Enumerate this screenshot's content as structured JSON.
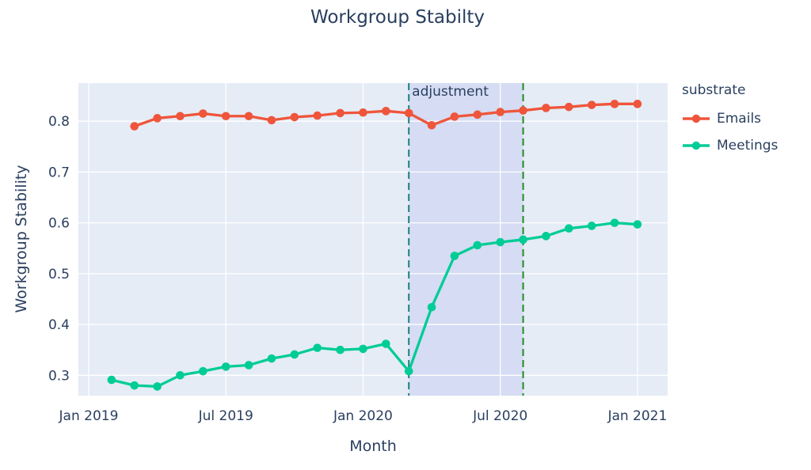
{
  "title": "Workgroup Stabilty",
  "axes": {
    "x_title": "Month",
    "y_title": "Workgroup Stability"
  },
  "annotation": "adjustment",
  "legend": {
    "title": "substrate",
    "items": [
      {
        "label": "Emails",
        "color": "#EF553B"
      },
      {
        "label": "Meetings",
        "color": "#00CC96"
      }
    ]
  },
  "colors": {
    "text": "#2a3f5f",
    "grid": "#ffffff",
    "plot_bg": "#E5ECF6",
    "region_fill": "#646EDC",
    "region_line_left": "#1d8080",
    "region_line_right": "#228B22"
  },
  "chart_data": {
    "type": "line",
    "title": "Workgroup Stabilty",
    "xlabel": "Month",
    "ylabel": "Workgroup Stability",
    "legend_title": "substrate",
    "legend_position": "right",
    "grid": true,
    "plot_bg": "#E5ECF6",
    "x_range_month_index": [
      -0.45,
      25.32
    ],
    "y_range": [
      0.26,
      0.875
    ],
    "x_ticks": {
      "months": [
        "2019-01",
        "2019-07",
        "2020-01",
        "2020-07",
        "2021-01"
      ],
      "labels": [
        "Jan 2019",
        "Jul 2019",
        "Jan 2020",
        "Jul 2020",
        "Jan 2021"
      ]
    },
    "y_ticks": [
      0.3,
      0.4,
      0.5,
      0.6,
      0.7,
      0.8
    ],
    "series": [
      {
        "name": "Emails",
        "color": "#EF553B",
        "x": [
          "2019-03",
          "2019-04",
          "2019-05",
          "2019-06",
          "2019-07",
          "2019-08",
          "2019-09",
          "2019-10",
          "2019-11",
          "2019-12",
          "2020-01",
          "2020-02",
          "2020-03",
          "2020-04",
          "2020-05",
          "2020-06",
          "2020-07",
          "2020-08",
          "2020-09",
          "2020-10",
          "2020-11",
          "2020-12",
          "2021-01"
        ],
        "values": [
          0.79,
          0.806,
          0.81,
          0.815,
          0.81,
          0.81,
          0.802,
          0.808,
          0.811,
          0.816,
          0.817,
          0.82,
          0.816,
          0.792,
          0.809,
          0.813,
          0.818,
          0.821,
          0.826,
          0.828,
          0.832,
          0.834,
          0.834
        ]
      },
      {
        "name": "Meetings",
        "color": "#00CC96",
        "x": [
          "2019-02",
          "2019-03",
          "2019-04",
          "2019-05",
          "2019-06",
          "2019-07",
          "2019-08",
          "2019-09",
          "2019-10",
          "2019-11",
          "2019-12",
          "2020-01",
          "2020-02",
          "2020-03",
          "2020-04",
          "2020-05",
          "2020-06",
          "2020-07",
          "2020-08",
          "2020-09",
          "2020-10",
          "2020-11",
          "2020-12",
          "2021-01"
        ],
        "values": [
          0.291,
          0.28,
          0.278,
          0.3,
          0.308,
          0.317,
          0.32,
          0.333,
          0.341,
          0.354,
          0.35,
          0.352,
          0.362,
          0.308,
          0.434,
          0.535,
          0.556,
          0.562,
          0.567,
          0.574,
          0.589,
          0.594,
          0.6,
          0.597
        ]
      }
    ],
    "region": {
      "label": "adjustment",
      "x0": "2020-03",
      "x1": "2020-08",
      "fill": "#646EDC",
      "fill_opacity": 0.12,
      "left_line_color": "#1d8080",
      "right_line_color": "#228B22",
      "line_dash": "9,5",
      "line_width": 2
    }
  }
}
